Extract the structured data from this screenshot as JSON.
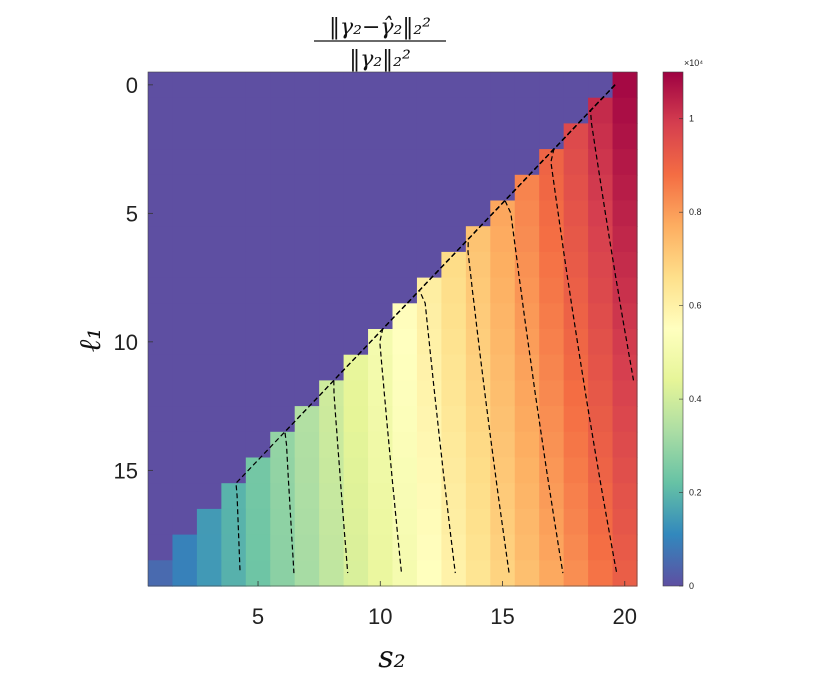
{
  "chart_data": {
    "type": "heatmap",
    "title": {
      "numerator": "‖γ₂−γ̂₂‖₂²",
      "denominator": "‖γ₂‖₂²"
    },
    "xlabel": "s₂",
    "ylabel": "ℓ₁",
    "x_range": [
      1,
      20
    ],
    "y_range": [
      0,
      19
    ],
    "y_reversed": true,
    "x_ticks": [
      5,
      10,
      15,
      20
    ],
    "y_ticks": [
      0,
      5,
      10,
      15
    ],
    "value_model": "For cells with s2 >= 19 - l1 + 1 the error rises roughly linearly with s2 from ~1000 at s2=1 to ~11000 at s2=20, shifted slightly lower at larger l1; cells below the diagonal are 0.",
    "colorbar": {
      "range": [
        0,
        11000
      ],
      "multiplier_label": "×10⁴",
      "ticks": [
        0,
        2000,
        4000,
        6000,
        8000,
        10000
      ],
      "tick_labels": [
        "0",
        "0.2",
        "0.4",
        "0.6",
        "0.8",
        "1"
      ],
      "colormap": [
        "#5e4fa2",
        "#3288bd",
        "#66c2a5",
        "#abdda4",
        "#e6f598",
        "#ffffbf",
        "#fee08b",
        "#fdae61",
        "#f46d43",
        "#d53e4f",
        "#9e0142"
      ]
    },
    "contours": {
      "style": "dashed",
      "color": "#000000",
      "levels": [
        2000,
        3000,
        4000,
        5000,
        6000,
        7000,
        8000,
        9000,
        10000
      ]
    },
    "grid": false
  }
}
